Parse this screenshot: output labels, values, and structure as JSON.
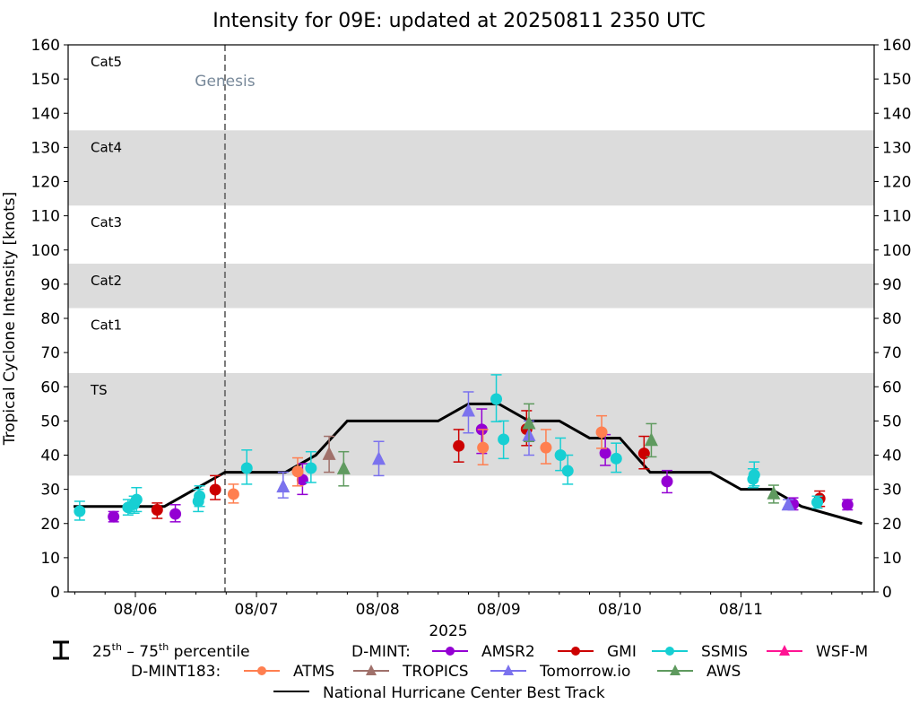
{
  "chart_data": {
    "type": "scatter",
    "title": "Intensity for 09E: updated at 20250811 2350 UTC",
    "xlabel": "2025",
    "ylabel": "Tropical Cyclone Intensity [knots]",
    "x_units": "days since 08/05 00 UTC",
    "xlim": [
      0.445,
      7.1
    ],
    "ylim": [
      0,
      160
    ],
    "yticks": [
      0,
      10,
      20,
      30,
      40,
      50,
      60,
      70,
      80,
      90,
      100,
      110,
      120,
      130,
      140,
      150,
      160
    ],
    "xticks": [
      {
        "x": 1,
        "label": "08/06"
      },
      {
        "x": 2,
        "label": "08/07"
      },
      {
        "x": 3,
        "label": "08/08"
      },
      {
        "x": 4,
        "label": "08/09"
      },
      {
        "x": 5,
        "label": "08/10"
      },
      {
        "x": 6,
        "label": "08/11"
      }
    ],
    "minor_tick_step_days": 0.25,
    "right_axis_mirror": true,
    "grid": false,
    "category_bands": [
      {
        "label": "TS",
        "low": 34,
        "high": 64,
        "shaded": true
      },
      {
        "label": "Cat1",
        "low": 64,
        "high": 83,
        "shaded": false
      },
      {
        "label": "Cat2",
        "low": 83,
        "high": 96,
        "shaded": true
      },
      {
        "label": "Cat3",
        "low": 96,
        "high": 113,
        "shaded": false
      },
      {
        "label": "Cat4",
        "low": 113,
        "high": 135,
        "shaded": true
      },
      {
        "label": "Cat5",
        "low": 135,
        "high": 160,
        "shaded": false
      }
    ],
    "band_color": "#dcdcdc",
    "genesis": {
      "x": 1.74,
      "label": "Genesis",
      "color": "#778899"
    },
    "best_track": {
      "name": "National Hurricane Center Best Track",
      "color": "#000000",
      "points": [
        [
          0.49,
          25
        ],
        [
          1.24,
          25
        ],
        [
          1.74,
          35
        ],
        [
          2.24,
          35
        ],
        [
          2.49,
          40
        ],
        [
          2.75,
          50
        ],
        [
          3.5,
          50
        ],
        [
          3.75,
          55
        ],
        [
          4.0,
          55
        ],
        [
          4.25,
          50
        ],
        [
          4.5,
          50
        ],
        [
          4.75,
          45
        ],
        [
          5.0,
          45
        ],
        [
          5.25,
          35
        ],
        [
          5.75,
          35
        ],
        [
          6.0,
          30
        ],
        [
          6.25,
          30
        ],
        [
          6.5,
          25
        ],
        [
          7.0,
          20
        ]
      ]
    },
    "series": [
      {
        "name": "AMSR2",
        "group": "D-MINT",
        "marker": "circle",
        "color": "#9400d3",
        "points": [
          {
            "x": 0.82,
            "y": 22,
            "lo": 20.5,
            "hi": 23.5
          },
          {
            "x": 1.33,
            "y": 22.8,
            "lo": 20.5,
            "hi": 25.5
          },
          {
            "x": 2.38,
            "y": 32.8,
            "lo": 28.5,
            "hi": 37.5
          },
          {
            "x": 3.86,
            "y": 47.5,
            "lo": 40.5,
            "hi": 53.5
          },
          {
            "x": 4.88,
            "y": 40.6,
            "lo": 37,
            "hi": 46
          },
          {
            "x": 5.39,
            "y": 32.3,
            "lo": 29,
            "hi": 35.5
          },
          {
            "x": 6.43,
            "y": 25.7,
            "lo": 24,
            "hi": 27.5
          },
          {
            "x": 6.88,
            "y": 25.5,
            "lo": 24,
            "hi": 27
          }
        ]
      },
      {
        "name": "GMI",
        "group": "D-MINT",
        "marker": "circle",
        "color": "#cc0000",
        "points": [
          {
            "x": 1.18,
            "y": 24,
            "lo": 21.5,
            "hi": 26
          },
          {
            "x": 1.66,
            "y": 29.9,
            "lo": 27,
            "hi": 34
          },
          {
            "x": 3.67,
            "y": 42.7,
            "lo": 38,
            "hi": 47.5
          },
          {
            "x": 4.23,
            "y": 47.6,
            "lo": 42.8,
            "hi": 53
          },
          {
            "x": 5.2,
            "y": 40.5,
            "lo": 36,
            "hi": 45.5
          },
          {
            "x": 6.65,
            "y": 27.3,
            "lo": 25,
            "hi": 29.5
          }
        ]
      },
      {
        "name": "SSMIS",
        "group": "D-MINT",
        "marker": "circle",
        "color": "#17cfd3",
        "points": [
          {
            "x": 0.54,
            "y": 23.6,
            "lo": 21,
            "hi": 26.5
          },
          {
            "x": 0.94,
            "y": 24.7,
            "lo": 22.5,
            "hi": 27
          },
          {
            "x": 0.99,
            "y": 25.7,
            "lo": 23,
            "hi": 28
          },
          {
            "x": 1.01,
            "y": 27,
            "lo": 23.5,
            "hi": 30.5
          },
          {
            "x": 1.52,
            "y": 26.5,
            "lo": 23.5,
            "hi": 30
          },
          {
            "x": 1.53,
            "y": 28,
            "lo": 25,
            "hi": 31
          },
          {
            "x": 1.92,
            "y": 36.2,
            "lo": 31.5,
            "hi": 41.5
          },
          {
            "x": 2.45,
            "y": 36.2,
            "lo": 32,
            "hi": 41
          },
          {
            "x": 3.98,
            "y": 56.4,
            "lo": 49.8,
            "hi": 63.5
          },
          {
            "x": 4.04,
            "y": 44.6,
            "lo": 39,
            "hi": 50
          },
          {
            "x": 4.51,
            "y": 40,
            "lo": 35.5,
            "hi": 45
          },
          {
            "x": 4.57,
            "y": 35.4,
            "lo": 31.5,
            "hi": 40
          },
          {
            "x": 4.97,
            "y": 39,
            "lo": 35,
            "hi": 43.5
          },
          {
            "x": 6.1,
            "y": 33,
            "lo": 30.5,
            "hi": 36
          },
          {
            "x": 6.11,
            "y": 34.2,
            "lo": 31,
            "hi": 38
          },
          {
            "x": 6.63,
            "y": 26.2,
            "lo": 24.5,
            "hi": 28
          }
        ]
      },
      {
        "name": "WSF-M",
        "group": "D-MINT",
        "marker": "triangle",
        "color": "#ff1493",
        "points": []
      },
      {
        "name": "ATMS",
        "group": "D-MINT183",
        "marker": "circle",
        "color": "#ff7f50",
        "points": [
          {
            "x": 1.81,
            "y": 28.6,
            "lo": 26,
            "hi": 31.5
          },
          {
            "x": 2.34,
            "y": 35.2,
            "lo": 31,
            "hi": 39.2
          },
          {
            "x": 3.87,
            "y": 42.2,
            "lo": 37.2,
            "hi": 47.5
          },
          {
            "x": 4.39,
            "y": 42.2,
            "lo": 37.5,
            "hi": 47.5
          },
          {
            "x": 4.85,
            "y": 46.7,
            "lo": 42,
            "hi": 51.5
          }
        ]
      },
      {
        "name": "TROPICS",
        "group": "D-MINT183",
        "marker": "triangle",
        "color": "#a0716b",
        "points": [
          {
            "x": 2.6,
            "y": 40.3,
            "lo": 35,
            "hi": 45.5
          }
        ]
      },
      {
        "name": "Tomorrow.io",
        "group": "D-MINT183",
        "marker": "triangle",
        "color": "#7b72ee",
        "points": [
          {
            "x": 2.22,
            "y": 30.8,
            "lo": 27.5,
            "hi": 35
          },
          {
            "x": 3.01,
            "y": 38.9,
            "lo": 34,
            "hi": 44
          },
          {
            "x": 3.75,
            "y": 53,
            "lo": 46.5,
            "hi": 58.5
          },
          {
            "x": 4.25,
            "y": 45.8,
            "lo": 40,
            "hi": 50
          },
          {
            "x": 6.39,
            "y": 25.5,
            "lo": 24.5,
            "hi": 27
          }
        ]
      },
      {
        "name": "AWS",
        "group": "D-MINT183",
        "marker": "triangle",
        "color": "#5f9a5f",
        "points": [
          {
            "x": 2.72,
            "y": 36.1,
            "lo": 31,
            "hi": 41
          },
          {
            "x": 4.25,
            "y": 49.3,
            "lo": 44,
            "hi": 55
          },
          {
            "x": 5.26,
            "y": 44.4,
            "lo": 39.5,
            "hi": 49.2
          },
          {
            "x": 6.27,
            "y": 28.8,
            "lo": 26,
            "hi": 31.2
          }
        ]
      }
    ],
    "legend": {
      "placement": "bottom-center",
      "percentile_label_base1": "25",
      "percentile_sup1": "th",
      "percentile_dash": " – ",
      "percentile_label_base2": "75",
      "percentile_sup2": "th",
      "percentile_suffix": " percentile",
      "group1_label": "D-MINT:",
      "group2_label": "D-MINT183:",
      "best_track_label": "National Hurricane Center Best Track"
    }
  }
}
